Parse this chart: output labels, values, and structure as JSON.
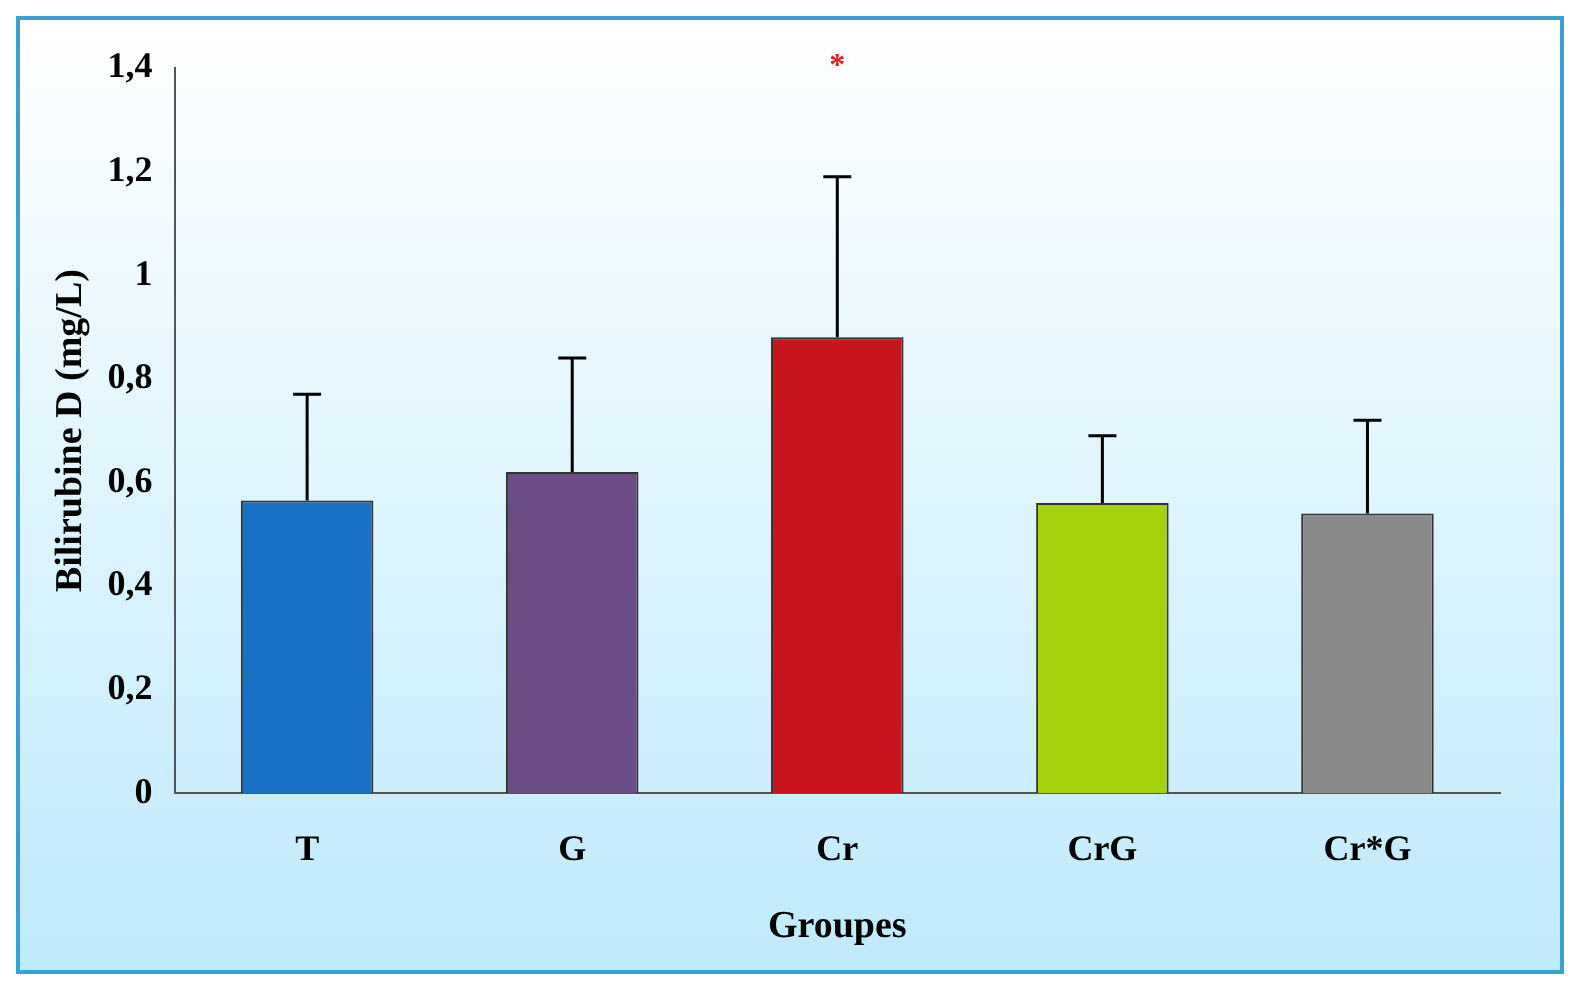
{
  "chart_data": {
    "type": "bar",
    "xlabel": "Groupes",
    "ylabel": "Bilirubine D (mg/L)",
    "categories": [
      "T",
      "G",
      "Cr",
      "CrG",
      "Cr*G"
    ],
    "values": [
      0.565,
      0.62,
      0.88,
      0.56,
      0.54
    ],
    "colors": [
      "#1a70c4",
      "#6a4d86",
      "#c8141c",
      "#a4d20a",
      "#8a8a8a"
    ],
    "errors": [
      [
        0.565,
        0.77
      ],
      [
        0.62,
        0.84
      ],
      [
        0.88,
        1.19
      ],
      [
        0.56,
        0.69
      ],
      [
        0.54,
        0.72
      ]
    ],
    "ylim": [
      0,
      1.4
    ],
    "yticks": [
      {
        "value": 0,
        "label": "0"
      },
      {
        "value": 0.2,
        "label": "0,2"
      },
      {
        "value": 0.4,
        "label": "0,4"
      },
      {
        "value": 0.6,
        "label": "0,6"
      },
      {
        "value": 0.8,
        "label": "0,8"
      },
      {
        "value": 1,
        "label": "1"
      },
      {
        "value": 1.2,
        "label": "1,2"
      },
      {
        "value": 1.4,
        "label": "1,4"
      }
    ],
    "annotations": [
      "*"
    ],
    "grid": false,
    "legend": false
  }
}
